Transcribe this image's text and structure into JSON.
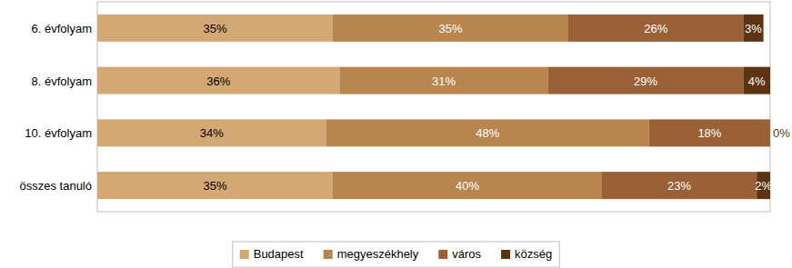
{
  "chart_data": {
    "type": "bar",
    "orientation": "horizontal",
    "stacked": true,
    "data_labels": true,
    "tick_labels": "y",
    "grid": false,
    "legend": "bottom",
    "xlim": [
      0,
      100
    ],
    "categories": [
      "6. évfolyam",
      "8. évfolyam",
      "10. évfolyam",
      "összes tanuló"
    ],
    "series": [
      {
        "name": "Budapest",
        "color": "#d4a873",
        "values": [
          35,
          36,
          34,
          35
        ],
        "value_labels": [
          "35%",
          "36%",
          "34%",
          "35%"
        ]
      },
      {
        "name": "megyeszékhely",
        "color": "#b9854f",
        "values": [
          35,
          31,
          48,
          40
        ],
        "value_labels": [
          "35%",
          "31%",
          "48%",
          "40%"
        ]
      },
      {
        "name": "város",
        "color": "#9a6136",
        "values": [
          26,
          29,
          18,
          23
        ],
        "value_labels": [
          "26%",
          "29%",
          "18%",
          "23%"
        ]
      },
      {
        "name": "község",
        "color": "#5c3410",
        "values": [
          3,
          4,
          0,
          2
        ],
        "value_labels": [
          "3%",
          "4%",
          "0%",
          "2%"
        ]
      }
    ]
  }
}
